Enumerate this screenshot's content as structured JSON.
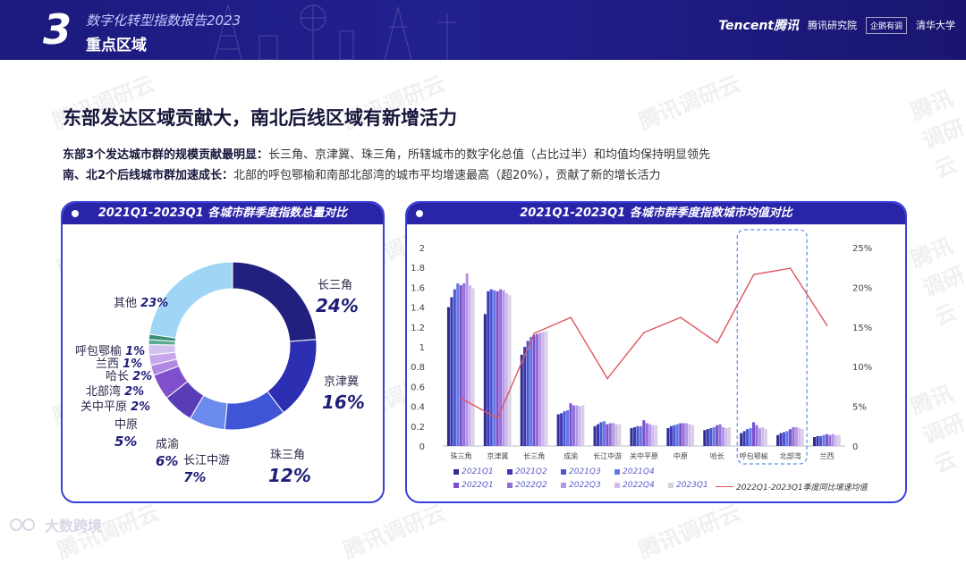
{
  "header": {
    "section_number": "3",
    "title": "数字化转型指数报告2023",
    "subtitle": "重点区域",
    "brands": [
      "Tencent腾讯",
      "腾讯研究院",
      "企鹅有调",
      "清华大学"
    ]
  },
  "watermark_text": "腾讯调研云",
  "footer_logo": "大数跨境",
  "main_title": "东部发达区域贡献大，南北后线区域有新增活力",
  "desc": [
    {
      "bold": "东部3个发达城市群的规模贡献最明显：",
      "text": "长三角、京津冀、珠三角，所辖城市的数字化总值（占比过半）和均值均保持明显领先"
    },
    {
      "bold": "南、北2个后线城市群加速成长：",
      "text": "北部的呼包鄂榆和南部北部湾的城市平均增速最高（超20%），贡献了新的增长活力"
    }
  ],
  "colors": {
    "accent": "#2a24a8",
    "border": "#3a3fd8",
    "line": "#e05560"
  },
  "chart_data": [
    {
      "type": "pie",
      "title": "2021Q1-2023Q1 各城市群季度指数总量对比",
      "categories": [
        "长三角",
        "京津冀",
        "珠三角",
        "长江中游",
        "成渝",
        "中原",
        "关中平原",
        "北部湾",
        "哈长",
        "兰西",
        "呼包鄂榆",
        "其他"
      ],
      "values": [
        24,
        16,
        12,
        7,
        6,
        5,
        2,
        2,
        2,
        1,
        1,
        23
      ],
      "labels": [
        "24%",
        "16%",
        "12%",
        "7%",
        "6%",
        "5%",
        "2%",
        "2%",
        "2%",
        "1%",
        "1%",
        "23%"
      ],
      "colors": [
        "#22207e",
        "#2d2fb2",
        "#3e55d6",
        "#6a8aec",
        "#5a3cb8",
        "#8050cc",
        "#b08ae0",
        "#c7a6ec",
        "#d2c2ee",
        "#5da992",
        "#3a8f7a",
        "#9fd6f6"
      ]
    },
    {
      "type": "bar",
      "title": "2021Q1-2023Q1 各城市群季度指数城市均值对比",
      "categories": [
        "珠三角",
        "京津冀",
        "长三角",
        "成渝",
        "长江中游",
        "关中平原",
        "中原",
        "哈长",
        "呼包鄂榆",
        "北部湾",
        "兰西"
      ],
      "series": [
        {
          "name": "2021Q1",
          "color": "#2e2c8e",
          "values": [
            1.4,
            1.33,
            0.92,
            0.32,
            0.2,
            0.18,
            0.18,
            0.16,
            0.13,
            0.11,
            0.09
          ]
        },
        {
          "name": "2021Q2",
          "color": "#3b38b4",
          "values": [
            1.5,
            1.56,
            1.0,
            0.33,
            0.22,
            0.19,
            0.2,
            0.17,
            0.15,
            0.13,
            0.1
          ]
        },
        {
          "name": "2021Q3",
          "color": "#4a56d4",
          "values": [
            1.58,
            1.58,
            1.06,
            0.35,
            0.24,
            0.2,
            0.21,
            0.18,
            0.17,
            0.14,
            0.1
          ]
        },
        {
          "name": "2021Q4",
          "color": "#6578e2",
          "values": [
            1.64,
            1.57,
            1.1,
            0.36,
            0.25,
            0.2,
            0.22,
            0.19,
            0.18,
            0.15,
            0.11
          ]
        },
        {
          "name": "2022Q1",
          "color": "#7b4fd0",
          "values": [
            1.62,
            1.56,
            1.12,
            0.43,
            0.22,
            0.26,
            0.23,
            0.21,
            0.24,
            0.17,
            0.12
          ]
        },
        {
          "name": "2022Q2",
          "color": "#9070d8",
          "values": [
            1.64,
            1.58,
            1.13,
            0.41,
            0.23,
            0.23,
            0.23,
            0.22,
            0.21,
            0.19,
            0.11
          ]
        },
        {
          "name": "2022Q3",
          "color": "#b596e6",
          "values": [
            1.74,
            1.57,
            1.14,
            0.41,
            0.23,
            0.22,
            0.23,
            0.19,
            0.18,
            0.19,
            0.12
          ]
        },
        {
          "name": "2022Q4",
          "color": "#d2b8f2",
          "values": [
            1.62,
            1.54,
            1.15,
            0.4,
            0.22,
            0.21,
            0.22,
            0.18,
            0.19,
            0.18,
            0.11
          ]
        },
        {
          "name": "2023Q1",
          "color": "#d6d2de",
          "values": [
            1.59,
            1.52,
            1.16,
            0.41,
            0.22,
            0.21,
            0.21,
            0.19,
            0.17,
            0.17,
            0.11
          ]
        }
      ],
      "line": {
        "name": "2022Q1-2023Q1季度同比增速均值",
        "axis": "right",
        "color": "#e05560",
        "values": [
          6.0,
          3.5,
          14.2,
          16.2,
          8.5,
          14.3,
          16.2,
          13.0,
          21.6,
          22.4,
          15.2
        ]
      },
      "y_ticks": [
        "0",
        "0.2",
        "0.4",
        "0.6",
        "0.8",
        "1",
        "1.2",
        "1.4",
        "1.6",
        "1.8",
        "2"
      ],
      "y2_ticks": [
        "0",
        "5%",
        "10%",
        "15%",
        "20%",
        "25%"
      ],
      "ylim": [
        0,
        2
      ],
      "y2lim": [
        0,
        25
      ],
      "highlight_categories": [
        "呼包鄂榆",
        "北部湾"
      ]
    }
  ]
}
